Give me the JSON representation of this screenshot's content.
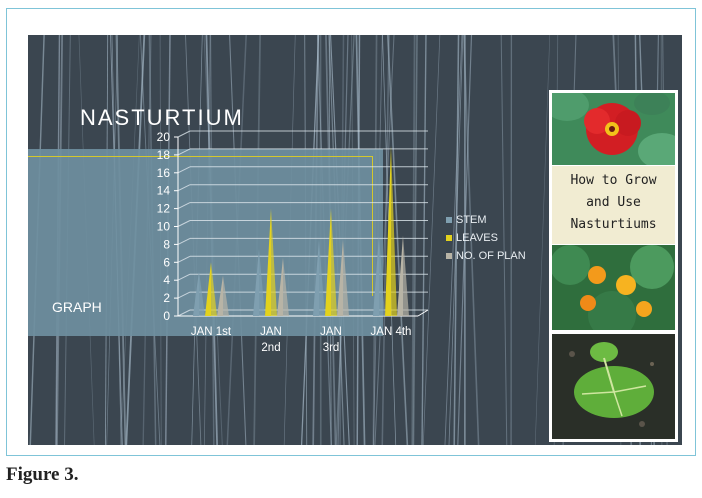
{
  "figure": {
    "caption": "Figure 3."
  },
  "slide": {
    "graph_label": "GRAPH",
    "colors": {
      "background": "#3b4650",
      "band": "#6f8fa0",
      "accent": "#d4c82c"
    }
  },
  "chart_data": {
    "type": "bar",
    "title": "NASTURTIUM",
    "categories": [
      [
        "JAN 1st"
      ],
      [
        "JAN",
        "2nd"
      ],
      [
        "JAN",
        "3rd"
      ],
      [
        "JAN 4th"
      ]
    ],
    "series": [
      {
        "name": "STEM",
        "color": "#7f9fb0",
        "values": [
          5,
          7.5,
          8.5,
          9
        ]
      },
      {
        "name": "LEAVES",
        "color": "#e3d21e",
        "values": [
          6,
          12,
          12,
          19
        ]
      },
      {
        "name": "NO. OF PLAN",
        "color": "#b8b4a6",
        "values": [
          4.5,
          6.5,
          8.5,
          9
        ]
      }
    ],
    "yticks": [
      0,
      2,
      4,
      6,
      8,
      10,
      12,
      14,
      16,
      18,
      20
    ],
    "ylim": [
      0,
      20
    ],
    "grid": true,
    "legend": "right",
    "xlabel": "",
    "ylabel": ""
  },
  "book": {
    "title_lines": [
      "How to Grow",
      "and Use",
      "Nasturtiums"
    ],
    "icons": [
      "nasturtium-flower-icon",
      "nasturtium-leaves-icon",
      "nasturtium-seedling-icon"
    ]
  }
}
